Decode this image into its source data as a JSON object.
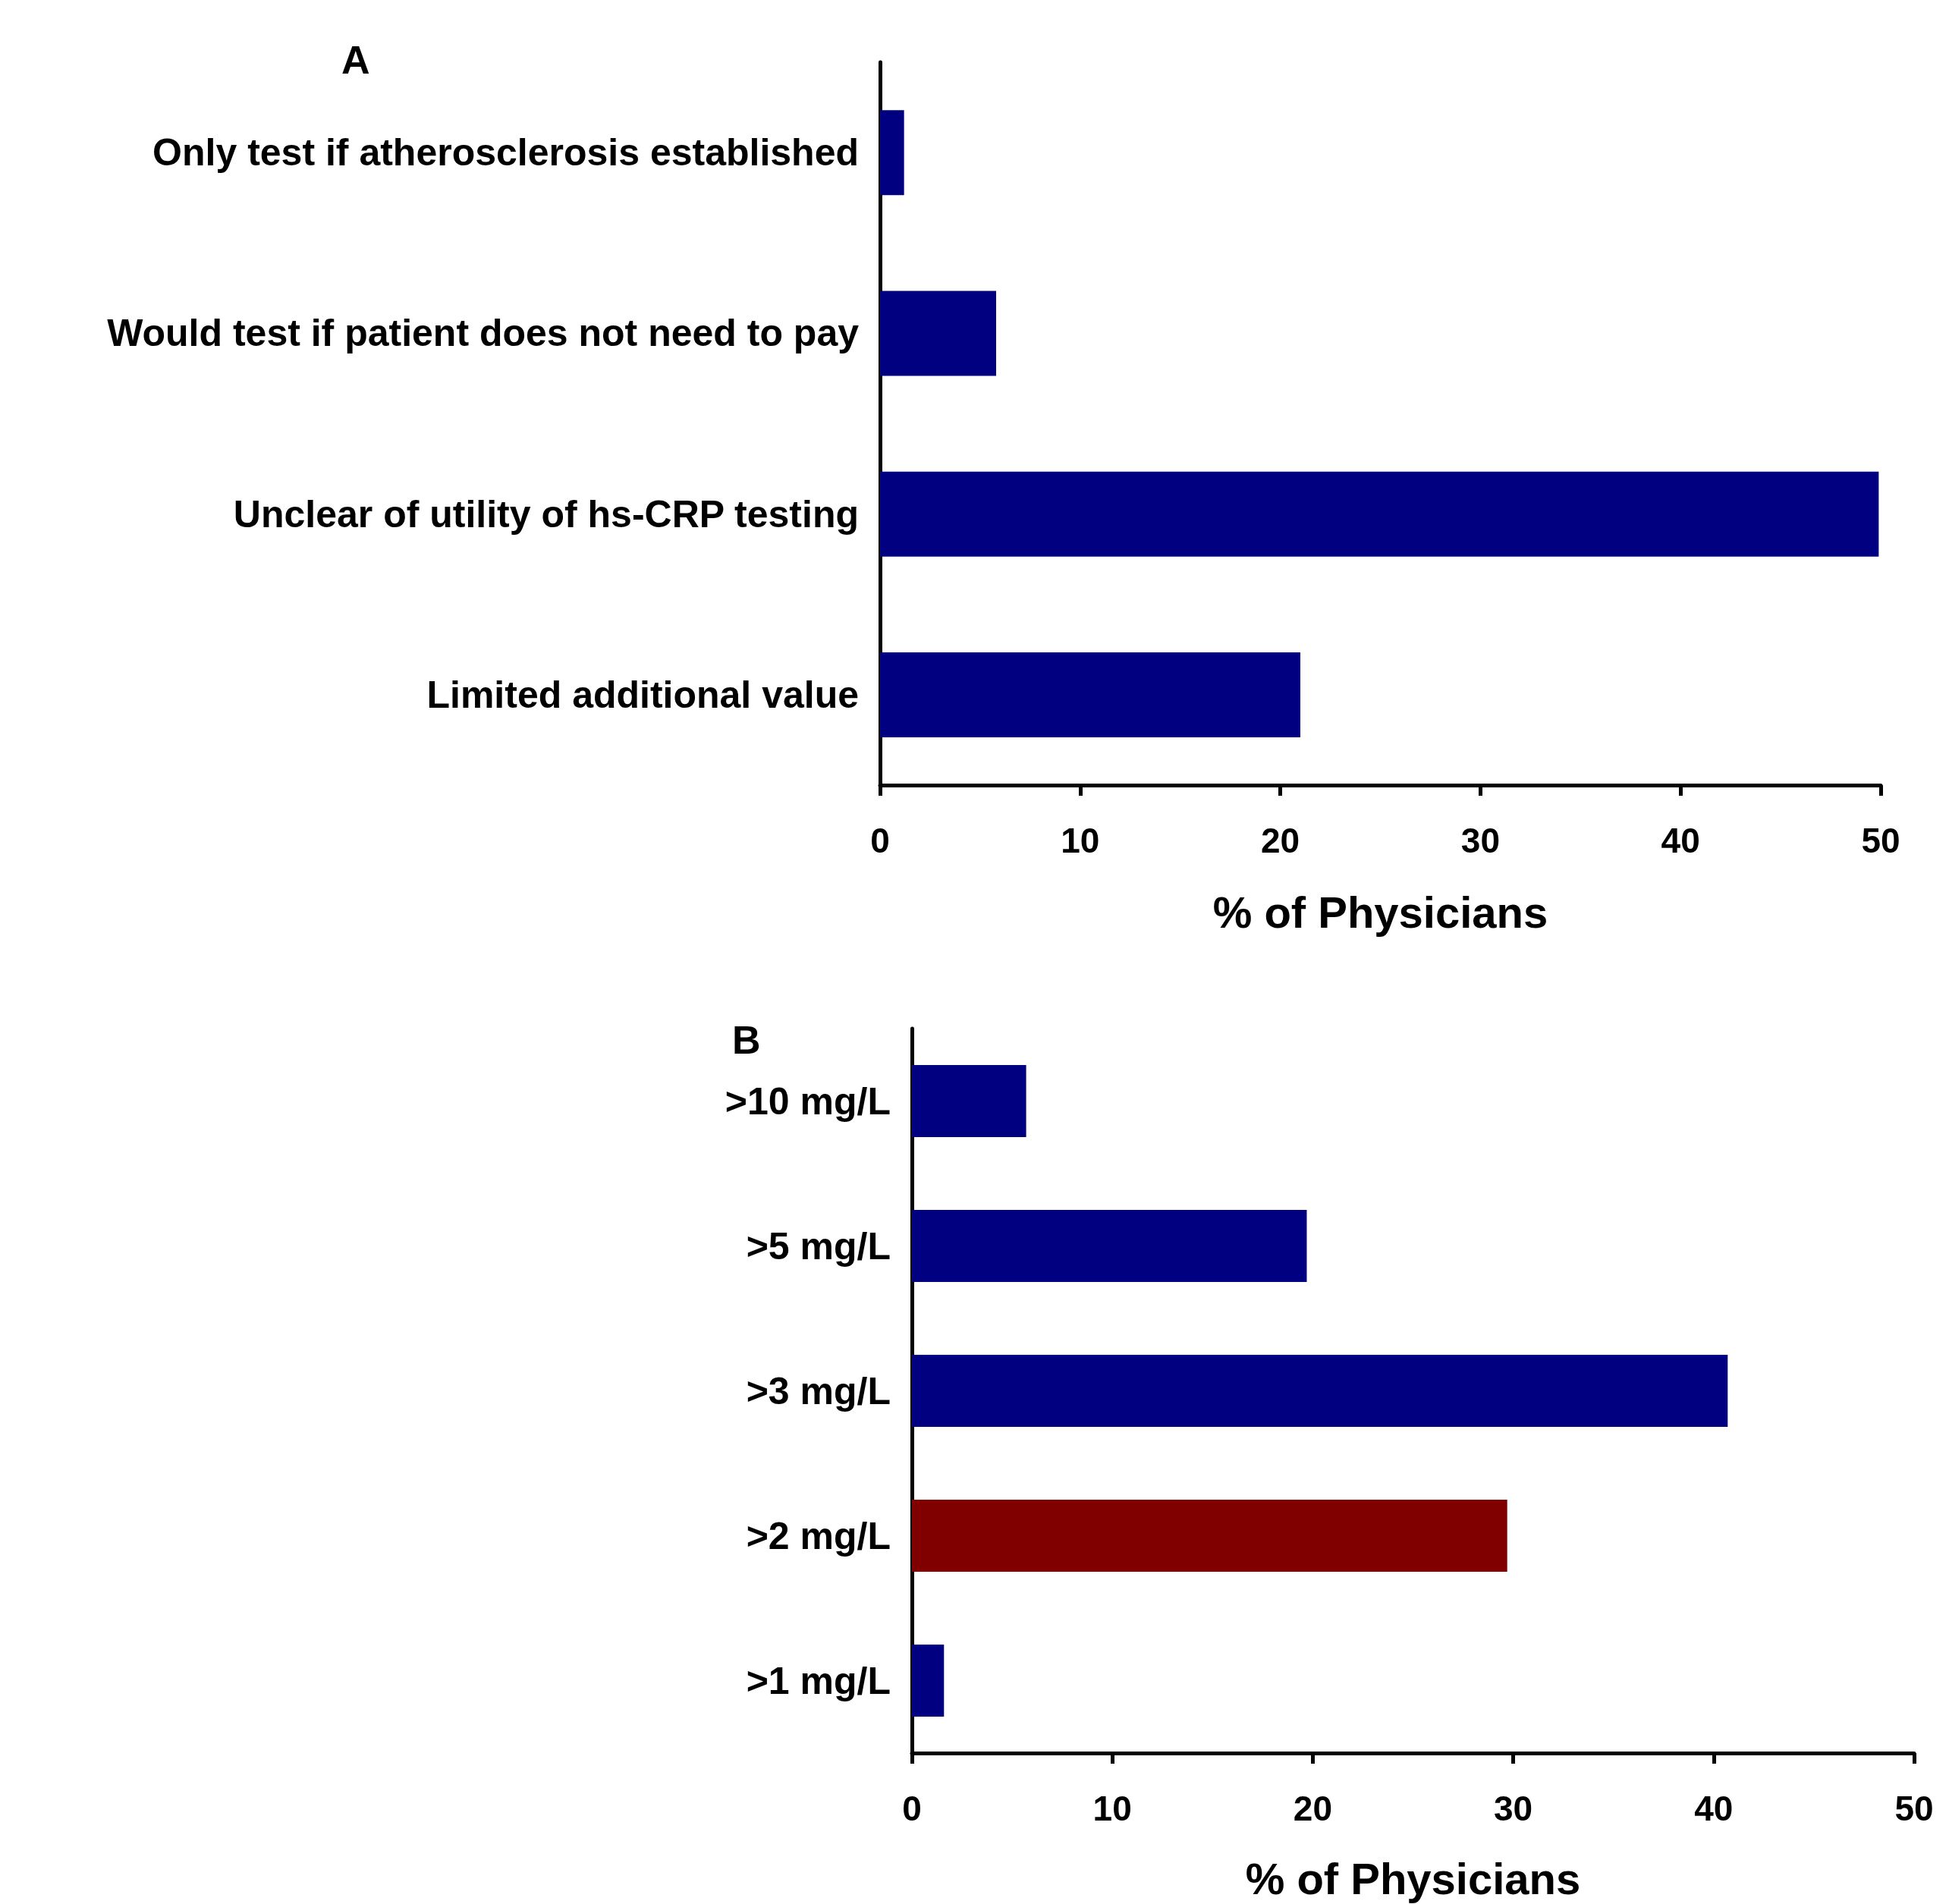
{
  "chart_data": [
    {
      "type": "bar",
      "title": "A",
      "orientation": "horizontal",
      "xlabel": "% of Physicians",
      "categories": [
        "Only test if atherosclerosis established",
        "Would test if patient does not need to pay",
        "Unclear of utility of hs-CRP testing",
        "Limited additional value"
      ],
      "values": [
        1.2,
        5.8,
        49.9,
        21.0
      ],
      "colors": [
        "#000080",
        "#000080",
        "#000080",
        "#000080"
      ],
      "xlim": [
        0,
        50
      ],
      "xticks": [
        0,
        10,
        20,
        30,
        40,
        50
      ]
    },
    {
      "type": "bar",
      "title": "B",
      "orientation": "horizontal",
      "xlabel": "% of Physicians",
      "categories": [
        ">10 mg/L",
        ">5 mg/L",
        ">3 mg/L",
        ">2 mg/L",
        ">1 mg/L"
      ],
      "values": [
        5.7,
        19.7,
        40.7,
        29.7,
        1.6
      ],
      "colors": [
        "#000080",
        "#000080",
        "#000080",
        "#800000",
        "#000080"
      ],
      "xlim": [
        0,
        50
      ],
      "xticks": [
        0,
        10,
        20,
        30,
        40,
        50
      ]
    }
  ]
}
